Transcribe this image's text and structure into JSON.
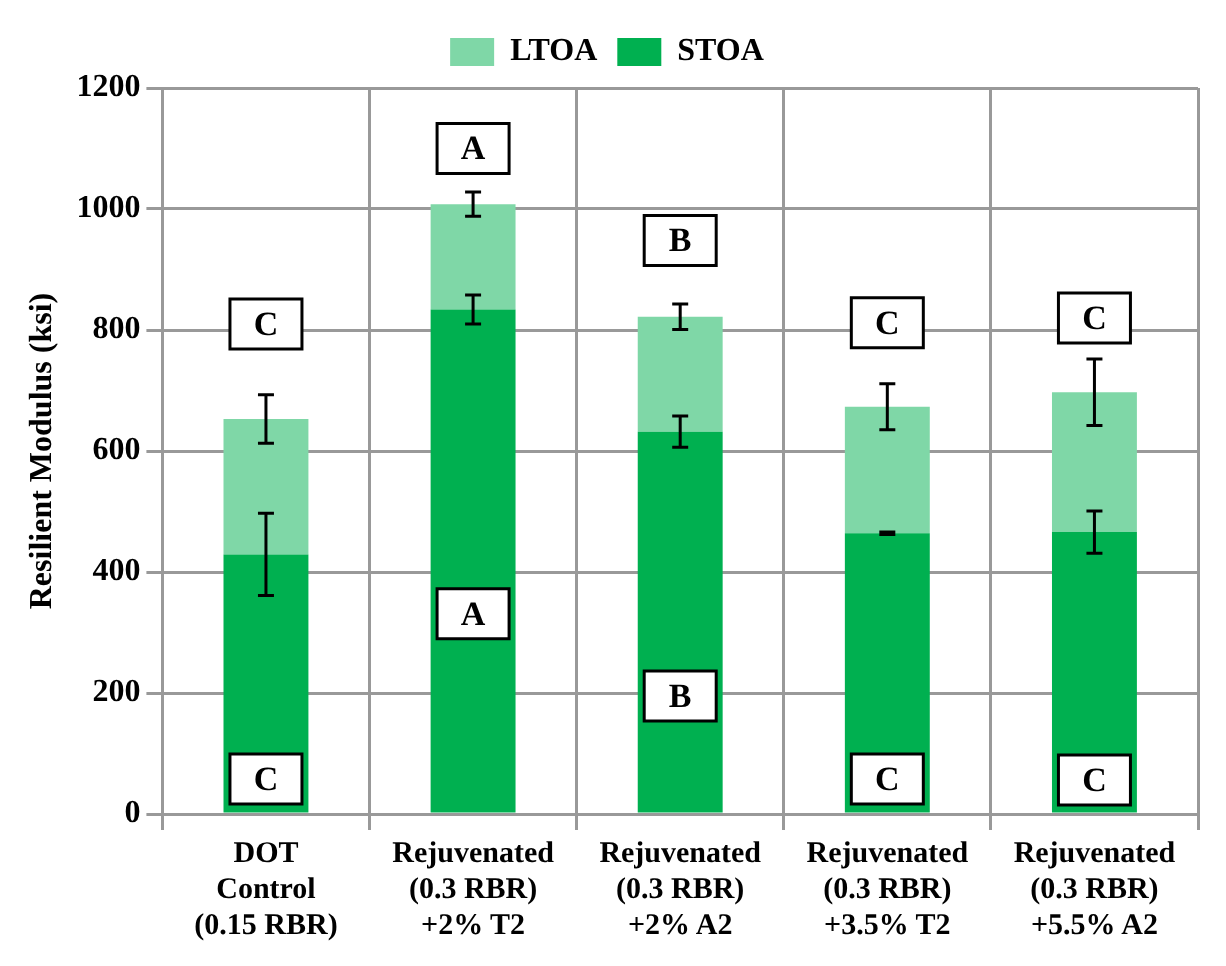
{
  "chart_data": {
    "type": "bar",
    "stacked": true,
    "ylabel": "Resilient Modulus (ksi)",
    "categories": [
      "DOT\nControl\n(0.15 RBR)",
      "Rejuvenated\n(0.3 RBR)\n+2% T2",
      "Rejuvenated\n(0.3 RBR)\n+2% A2",
      "Rejuvenated\n(0.3 RBR)\n+3.5% T2",
      "Rejuvenated\n(0.3 RBR)\n+5.5% A2"
    ],
    "series": [
      {
        "name": "STOA",
        "color": "#00b050",
        "values": [
          429,
          834,
          632,
          464,
          466
        ],
        "errors": [
          68,
          24,
          26,
          2,
          35
        ]
      },
      {
        "name": "LTOA",
        "color": "#7fd7a7",
        "values": [
          224,
          174,
          190,
          209,
          231
        ],
        "errors": [
          40,
          20,
          21,
          38,
          55
        ]
      }
    ],
    "ylim": [
      0,
      1200
    ],
    "yticks": [
      0,
      200,
      400,
      600,
      800,
      1000,
      1200
    ],
    "grid": true,
    "legend": "top",
    "annotations": [
      {
        "text": "C",
        "x": "DOT\nControl\n(0.15 RBR)",
        "y": 810
      },
      {
        "text": "A",
        "x": "Rejuvenated\n(0.3 RBR)\n+2% T2",
        "y": 1100
      },
      {
        "text": "B",
        "x": "Rejuvenated\n(0.3 RBR)\n+2% A2",
        "y": 948
      },
      {
        "text": "C",
        "x": "Rejuvenated\n(0.3 RBR)\n+3.5% T2",
        "y": 812
      },
      {
        "text": "C",
        "x": "Rejuvenated\n(0.3 RBR)\n+5.5% A2",
        "y": 820
      },
      {
        "text": "C",
        "x": "DOT\nControl\n(0.15 RBR)",
        "y": 58
      },
      {
        "text": "A",
        "x": "Rejuvenated\n(0.3 RBR)\n+2% T2",
        "y": 331
      },
      {
        "text": "B",
        "x": "Rejuvenated\n(0.3 RBR)\n+2% A2",
        "y": 195
      },
      {
        "text": "C",
        "x": "Rejuvenated\n(0.3 RBR)\n+3.5% T2",
        "y": 58
      },
      {
        "text": "C",
        "x": "Rejuvenated\n(0.3 RBR)\n+5.5% A2",
        "y": 56
      }
    ]
  }
}
